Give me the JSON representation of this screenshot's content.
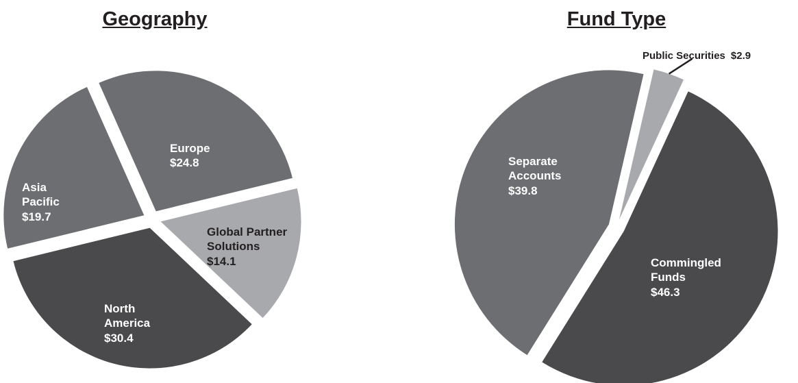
{
  "chart_data": [
    {
      "type": "pie",
      "title": "Geography",
      "categories": [
        "Europe",
        "Global Partner Solutions",
        "North America",
        "Asia Pacific"
      ],
      "values": [
        24.8,
        14.1,
        30.4,
        19.7
      ],
      "value_labels": [
        "$24.8",
        "$14.1",
        "$30.4",
        "$19.7"
      ],
      "colors": [
        "#6d6e71",
        "#a7a9ac",
        "#4a4a4c",
        "#6d6e71"
      ]
    },
    {
      "type": "pie",
      "title": "Fund Type",
      "categories": [
        "Public Securities",
        "Commingled Funds",
        "Separate Accounts"
      ],
      "values": [
        2.9,
        46.3,
        39.8
      ],
      "value_labels": [
        "$2.9",
        "$46.3",
        "$39.8"
      ],
      "colors": [
        "#a7a9ac",
        "#4a4a4c",
        "#6d6e71"
      ]
    }
  ]
}
